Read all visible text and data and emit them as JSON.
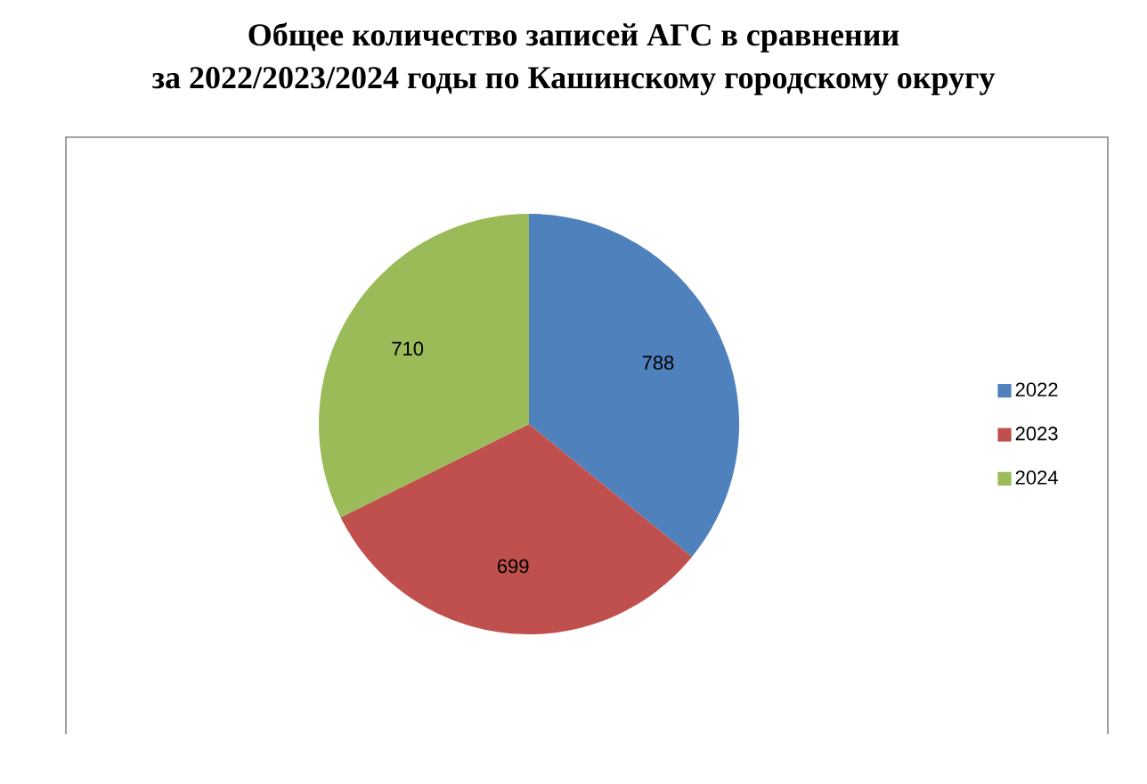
{
  "chart_data": {
    "type": "pie",
    "title": "Общее количество записей АГС в сравнении\nза 2022/2023/2024 годы по Кашинскому городскому округу",
    "categories": [
      "2022",
      "2023",
      "2024"
    ],
    "values": [
      788,
      699,
      710
    ],
    "colors": [
      "#4f81bd",
      "#c0504d",
      "#9bbb59"
    ],
    "data_labels": true,
    "legend": "right"
  }
}
